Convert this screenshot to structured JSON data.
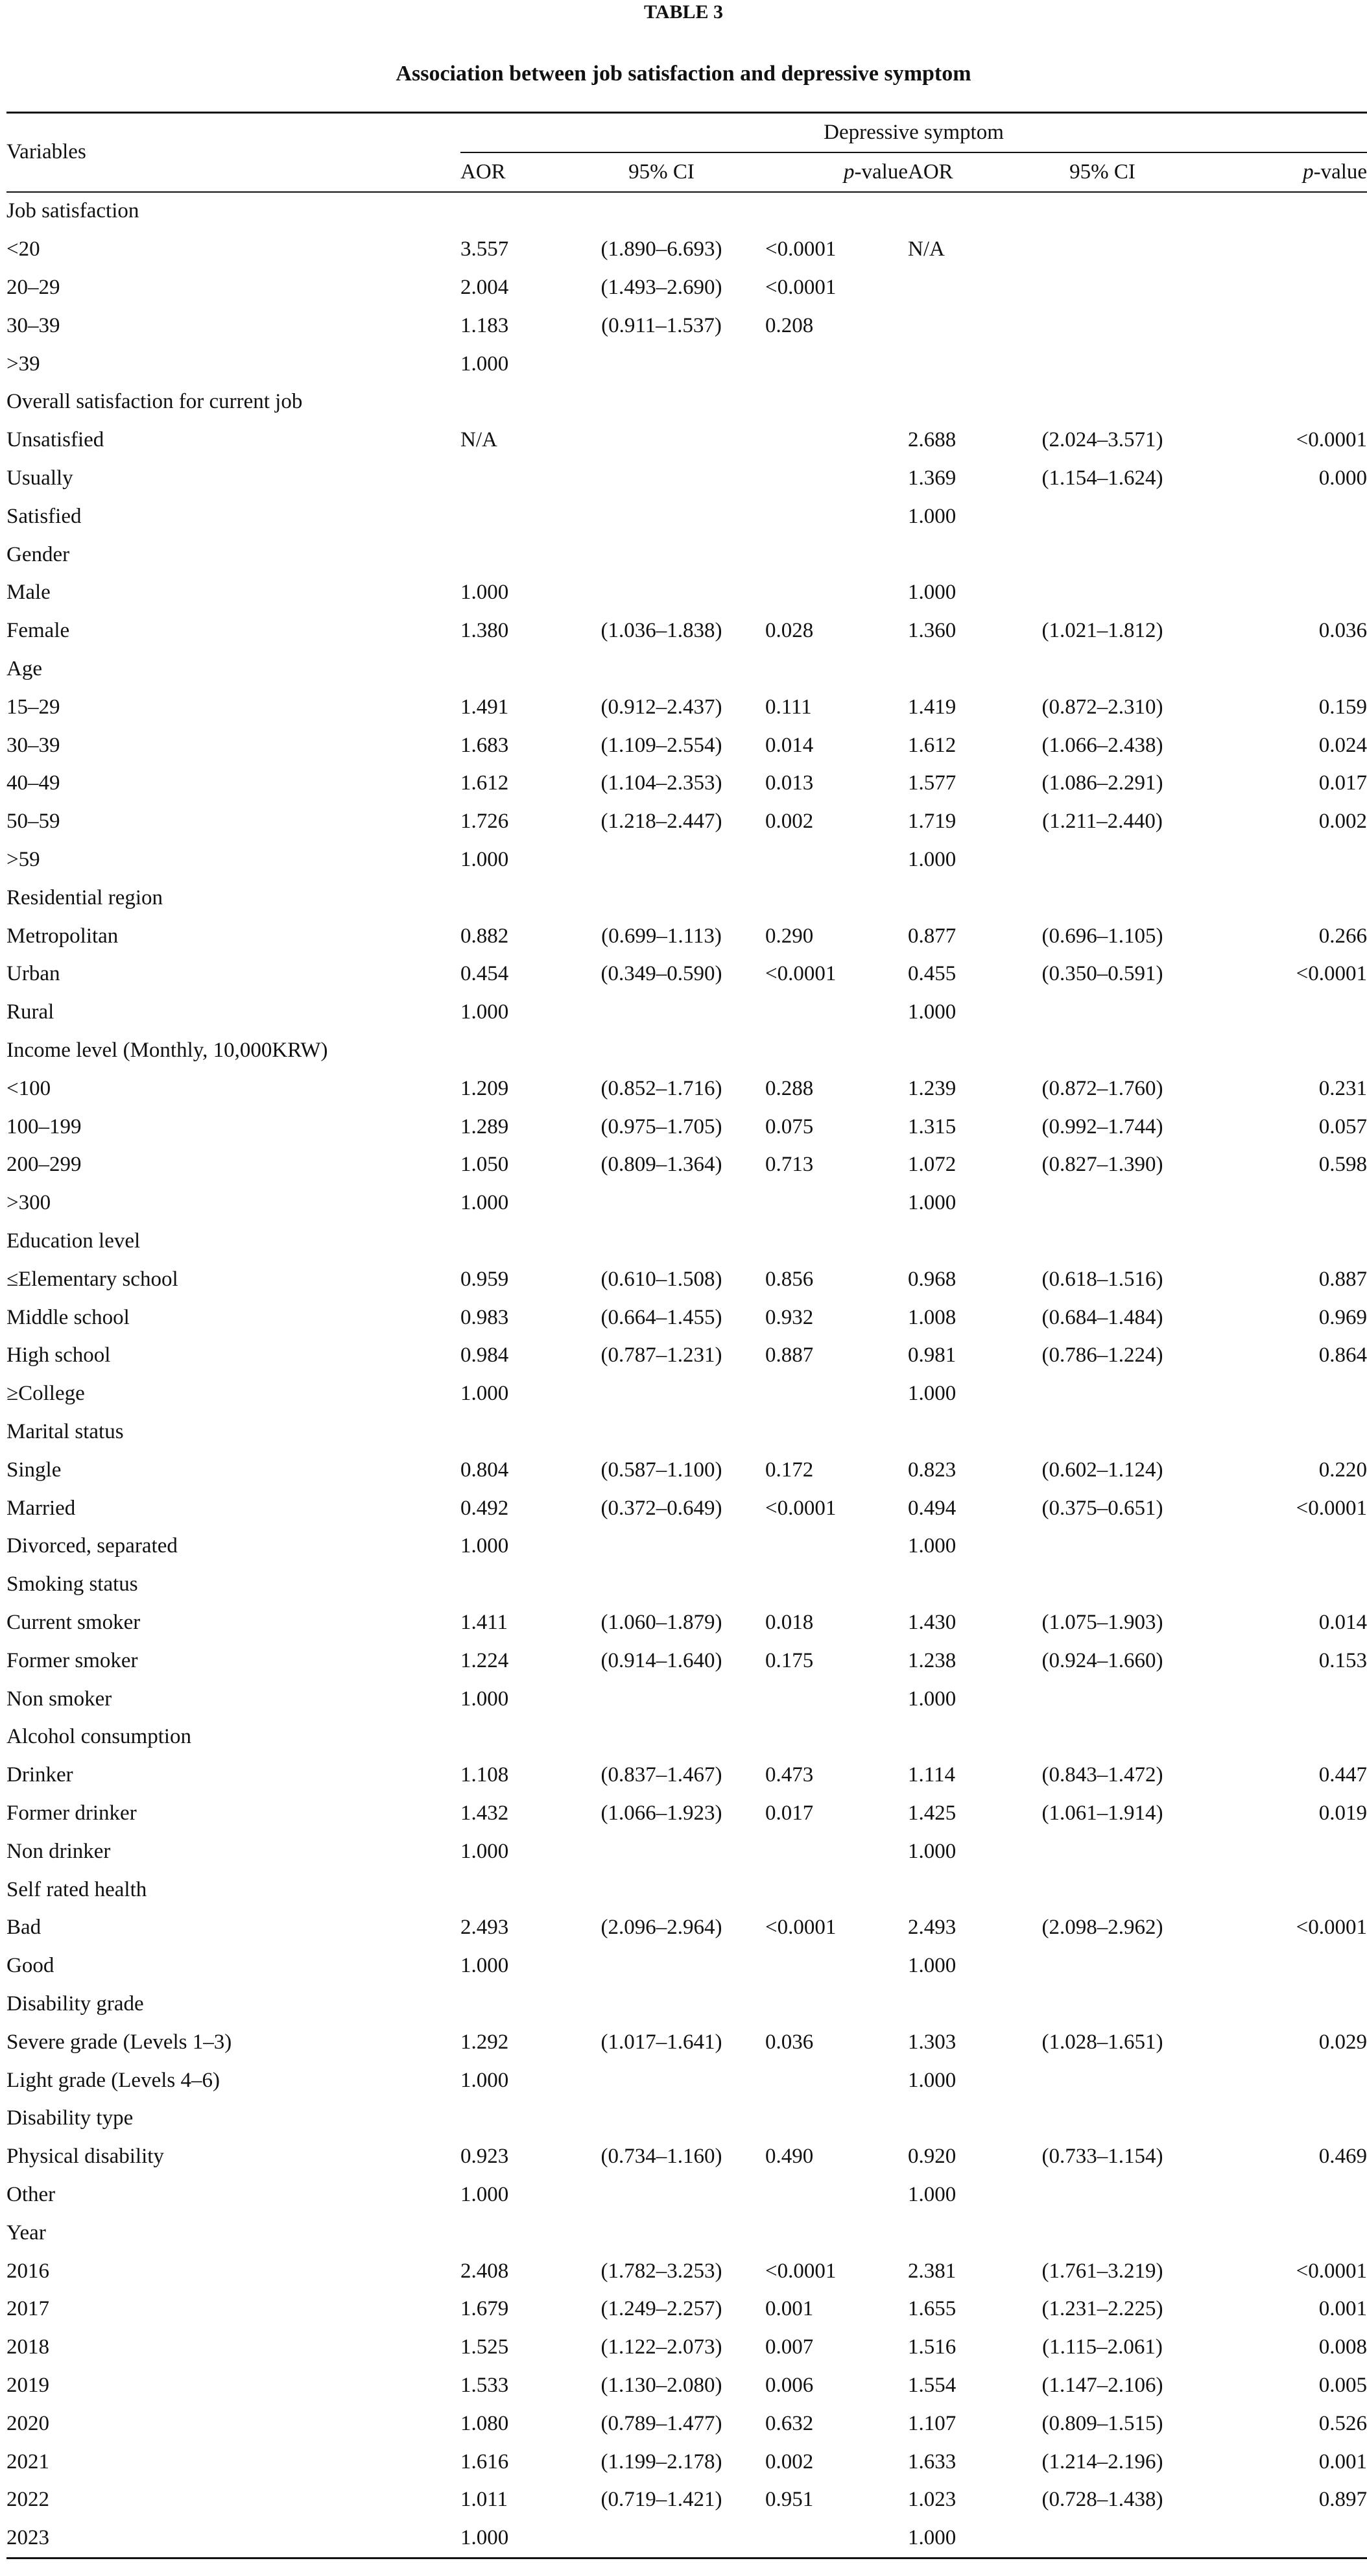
{
  "caption": {
    "label": "TABLE 3",
    "title": "Association between job satisfaction and depressive symptom"
  },
  "header": {
    "variables": "Variables",
    "group": "Depressive symptom",
    "aor": "AOR",
    "ci": "95% CI",
    "p_italic": "p",
    "p_rest": "-value"
  },
  "sections": [
    {
      "title": "Job satisfaction",
      "rows": [
        {
          "label": "<20",
          "aor1": "3.557",
          "ci1": "(1.890–6.693)",
          "p1": "<0.0001",
          "aor2": "N/A",
          "ci2": "",
          "p2": ""
        },
        {
          "label": "20–29",
          "aor1": "2.004",
          "ci1": "(1.493–2.690)",
          "p1": "<0.0001",
          "aor2": "",
          "ci2": "",
          "p2": ""
        },
        {
          "label": "30–39",
          "aor1": "1.183",
          "ci1": "(0.911–1.537)",
          "p1": "0.208",
          "aor2": "",
          "ci2": "",
          "p2": ""
        },
        {
          "label": ">39",
          "aor1": "1.000",
          "ci1": "",
          "p1": "",
          "aor2": "",
          "ci2": "",
          "p2": ""
        }
      ]
    },
    {
      "title": "Overall satisfaction for current job",
      "rows": [
        {
          "label": "Unsatisfied",
          "aor1": "N/A",
          "ci1": "",
          "p1": "",
          "aor2": "2.688",
          "ci2": "(2.024–3.571)",
          "p2": "<0.0001"
        },
        {
          "label": "Usually",
          "aor1": "",
          "ci1": "",
          "p1": "",
          "aor2": "1.369",
          "ci2": "(1.154–1.624)",
          "p2": "0.000"
        },
        {
          "label": "Satisfied",
          "aor1": "",
          "ci1": "",
          "p1": "",
          "aor2": "1.000",
          "ci2": "",
          "p2": ""
        }
      ]
    },
    {
      "title": "Gender",
      "rows": [
        {
          "label": "Male",
          "aor1": "1.000",
          "ci1": "",
          "p1": "",
          "aor2": "1.000",
          "ci2": "",
          "p2": ""
        },
        {
          "label": "Female",
          "aor1": "1.380",
          "ci1": "(1.036–1.838)",
          "p1": "0.028",
          "aor2": "1.360",
          "ci2": "(1.021–1.812)",
          "p2": "0.036"
        }
      ]
    },
    {
      "title": "Age",
      "rows": [
        {
          "label": "15–29",
          "aor1": "1.491",
          "ci1": "(0.912–2.437)",
          "p1": "0.111",
          "aor2": "1.419",
          "ci2": "(0.872–2.310)",
          "p2": "0.159"
        },
        {
          "label": "30–39",
          "aor1": "1.683",
          "ci1": "(1.109–2.554)",
          "p1": "0.014",
          "aor2": "1.612",
          "ci2": "(1.066–2.438)",
          "p2": "0.024"
        },
        {
          "label": "40–49",
          "aor1": "1.612",
          "ci1": "(1.104–2.353)",
          "p1": "0.013",
          "aor2": "1.577",
          "ci2": "(1.086–2.291)",
          "p2": "0.017"
        },
        {
          "label": "50–59",
          "aor1": "1.726",
          "ci1": "(1.218–2.447)",
          "p1": "0.002",
          "aor2": "1.719",
          "ci2": "(1.211–2.440)",
          "p2": "0.002"
        },
        {
          "label": ">59",
          "aor1": "1.000",
          "ci1": "",
          "p1": "",
          "aor2": "1.000",
          "ci2": "",
          "p2": ""
        }
      ]
    },
    {
      "title": "Residential region",
      "rows": [
        {
          "label": "Metropolitan",
          "aor1": "0.882",
          "ci1": "(0.699–1.113)",
          "p1": "0.290",
          "aor2": "0.877",
          "ci2": "(0.696–1.105)",
          "p2": "0.266"
        },
        {
          "label": "Urban",
          "aor1": "0.454",
          "ci1": "(0.349–0.590)",
          "p1": "<0.0001",
          "aor2": "0.455",
          "ci2": "(0.350–0.591)",
          "p2": "<0.0001"
        },
        {
          "label": "Rural",
          "aor1": "1.000",
          "ci1": "",
          "p1": "",
          "aor2": "1.000",
          "ci2": "",
          "p2": ""
        }
      ]
    },
    {
      "title": "Income level (Monthly, 10,000KRW)",
      "rows": [
        {
          "label": "<100",
          "aor1": "1.209",
          "ci1": "(0.852–1.716)",
          "p1": "0.288",
          "aor2": "1.239",
          "ci2": "(0.872–1.760)",
          "p2": "0.231"
        },
        {
          "label": "100–199",
          "aor1": "1.289",
          "ci1": "(0.975–1.705)",
          "p1": "0.075",
          "aor2": "1.315",
          "ci2": "(0.992–1.744)",
          "p2": "0.057"
        },
        {
          "label": "200–299",
          "aor1": "1.050",
          "ci1": "(0.809–1.364)",
          "p1": "0.713",
          "aor2": "1.072",
          "ci2": "(0.827–1.390)",
          "p2": "0.598"
        },
        {
          "label": ">300",
          "aor1": "1.000",
          "ci1": "",
          "p1": "",
          "aor2": "1.000",
          "ci2": "",
          "p2": ""
        }
      ]
    },
    {
      "title": "Education level",
      "rows": [
        {
          "label": "≤Elementary school",
          "aor1": "0.959",
          "ci1": "(0.610–1.508)",
          "p1": "0.856",
          "aor2": "0.968",
          "ci2": "(0.618–1.516)",
          "p2": "0.887"
        },
        {
          "label": "Middle school",
          "aor1": "0.983",
          "ci1": "(0.664–1.455)",
          "p1": "0.932",
          "aor2": "1.008",
          "ci2": "(0.684–1.484)",
          "p2": "0.969"
        },
        {
          "label": "High school",
          "aor1": "0.984",
          "ci1": "(0.787–1.231)",
          "p1": "0.887",
          "aor2": "0.981",
          "ci2": "(0.786–1.224)",
          "p2": "0.864"
        },
        {
          "label": "≥College",
          "aor1": "1.000",
          "ci1": "",
          "p1": "",
          "aor2": "1.000",
          "ci2": "",
          "p2": ""
        }
      ]
    },
    {
      "title": "Marital status",
      "rows": [
        {
          "label": "Single",
          "aor1": "0.804",
          "ci1": "(0.587–1.100)",
          "p1": "0.172",
          "aor2": "0.823",
          "ci2": "(0.602–1.124)",
          "p2": "0.220"
        },
        {
          "label": "Married",
          "aor1": "0.492",
          "ci1": "(0.372–0.649)",
          "p1": "<0.0001",
          "aor2": "0.494",
          "ci2": "(0.375–0.651)",
          "p2": "<0.0001"
        },
        {
          "label": "Divorced, separated",
          "aor1": "1.000",
          "ci1": "",
          "p1": "",
          "aor2": "1.000",
          "ci2": "",
          "p2": ""
        }
      ]
    },
    {
      "title": "Smoking status",
      "rows": [
        {
          "label": "Current smoker",
          "aor1": "1.411",
          "ci1": "(1.060–1.879)",
          "p1": "0.018",
          "aor2": "1.430",
          "ci2": "(1.075–1.903)",
          "p2": "0.014"
        },
        {
          "label": "Former smoker",
          "aor1": "1.224",
          "ci1": "(0.914–1.640)",
          "p1": "0.175",
          "aor2": "1.238",
          "ci2": "(0.924–1.660)",
          "p2": "0.153"
        },
        {
          "label": "Non smoker",
          "aor1": "1.000",
          "ci1": "",
          "p1": "",
          "aor2": "1.000",
          "ci2": "",
          "p2": ""
        }
      ]
    },
    {
      "title": "Alcohol consumption",
      "rows": [
        {
          "label": "Drinker",
          "aor1": "1.108",
          "ci1": "(0.837–1.467)",
          "p1": "0.473",
          "aor2": "1.114",
          "ci2": "(0.843–1.472)",
          "p2": "0.447"
        },
        {
          "label": "Former drinker",
          "aor1": "1.432",
          "ci1": "(1.066–1.923)",
          "p1": "0.017",
          "aor2": "1.425",
          "ci2": "(1.061–1.914)",
          "p2": "0.019"
        },
        {
          "label": "Non drinker",
          "aor1": "1.000",
          "ci1": "",
          "p1": "",
          "aor2": "1.000",
          "ci2": "",
          "p2": ""
        }
      ]
    },
    {
      "title": "Self rated health",
      "rows": [
        {
          "label": "Bad",
          "aor1": "2.493",
          "ci1": "(2.096–2.964)",
          "p1": "<0.0001",
          "aor2": "2.493",
          "ci2": "(2.098–2.962)",
          "p2": "<0.0001"
        },
        {
          "label": "Good",
          "aor1": "1.000",
          "ci1": "",
          "p1": "",
          "aor2": "1.000",
          "ci2": "",
          "p2": ""
        }
      ]
    },
    {
      "title": "Disability grade",
      "rows": [
        {
          "label": "Severe grade (Levels 1–3)",
          "aor1": "1.292",
          "ci1": "(1.017–1.641)",
          "p1": "0.036",
          "aor2": "1.303",
          "ci2": "(1.028–1.651)",
          "p2": "0.029"
        },
        {
          "label": "Light grade (Levels 4–6)",
          "aor1": "1.000",
          "ci1": "",
          "p1": "",
          "aor2": "1.000",
          "ci2": "",
          "p2": ""
        }
      ]
    },
    {
      "title": "Disability type",
      "rows": [
        {
          "label": "Physical disability",
          "aor1": "0.923",
          "ci1": "(0.734–1.160)",
          "p1": "0.490",
          "aor2": "0.920",
          "ci2": "(0.733–1.154)",
          "p2": "0.469"
        },
        {
          "label": "Other",
          "aor1": "1.000",
          "ci1": "",
          "p1": "",
          "aor2": "1.000",
          "ci2": "",
          "p2": ""
        }
      ]
    },
    {
      "title": "Year",
      "rows": [
        {
          "label": "2016",
          "aor1": "2.408",
          "ci1": "(1.782–3.253)",
          "p1": "<0.0001",
          "aor2": "2.381",
          "ci2": "(1.761–3.219)",
          "p2": "<0.0001"
        },
        {
          "label": "2017",
          "aor1": "1.679",
          "ci1": "(1.249–2.257)",
          "p1": "0.001",
          "aor2": "1.655",
          "ci2": "(1.231–2.225)",
          "p2": "0.001"
        },
        {
          "label": "2018",
          "aor1": "1.525",
          "ci1": "(1.122–2.073)",
          "p1": "0.007",
          "aor2": "1.516",
          "ci2": "(1.115–2.061)",
          "p2": "0.008"
        },
        {
          "label": "2019",
          "aor1": "1.533",
          "ci1": "(1.130–2.080)",
          "p1": "0.006",
          "aor2": "1.554",
          "ci2": "(1.147–2.106)",
          "p2": "0.005"
        },
        {
          "label": "2020",
          "aor1": "1.080",
          "ci1": "(0.789–1.477)",
          "p1": "0.632",
          "aor2": "1.107",
          "ci2": "(0.809–1.515)",
          "p2": "0.526"
        },
        {
          "label": "2021",
          "aor1": "1.616",
          "ci1": "(1.199–2.178)",
          "p1": "0.002",
          "aor2": "1.633",
          "ci2": "(1.214–2.196)",
          "p2": "0.001"
        },
        {
          "label": "2022",
          "aor1": "1.011",
          "ci1": "(0.719–1.421)",
          "p1": "0.951",
          "aor2": "1.023",
          "ci2": "(0.728–1.438)",
          "p2": "0.897"
        },
        {
          "label": "2023",
          "aor1": "1.000",
          "ci1": "",
          "p1": "",
          "aor2": "1.000",
          "ci2": "",
          "p2": ""
        }
      ]
    }
  ]
}
